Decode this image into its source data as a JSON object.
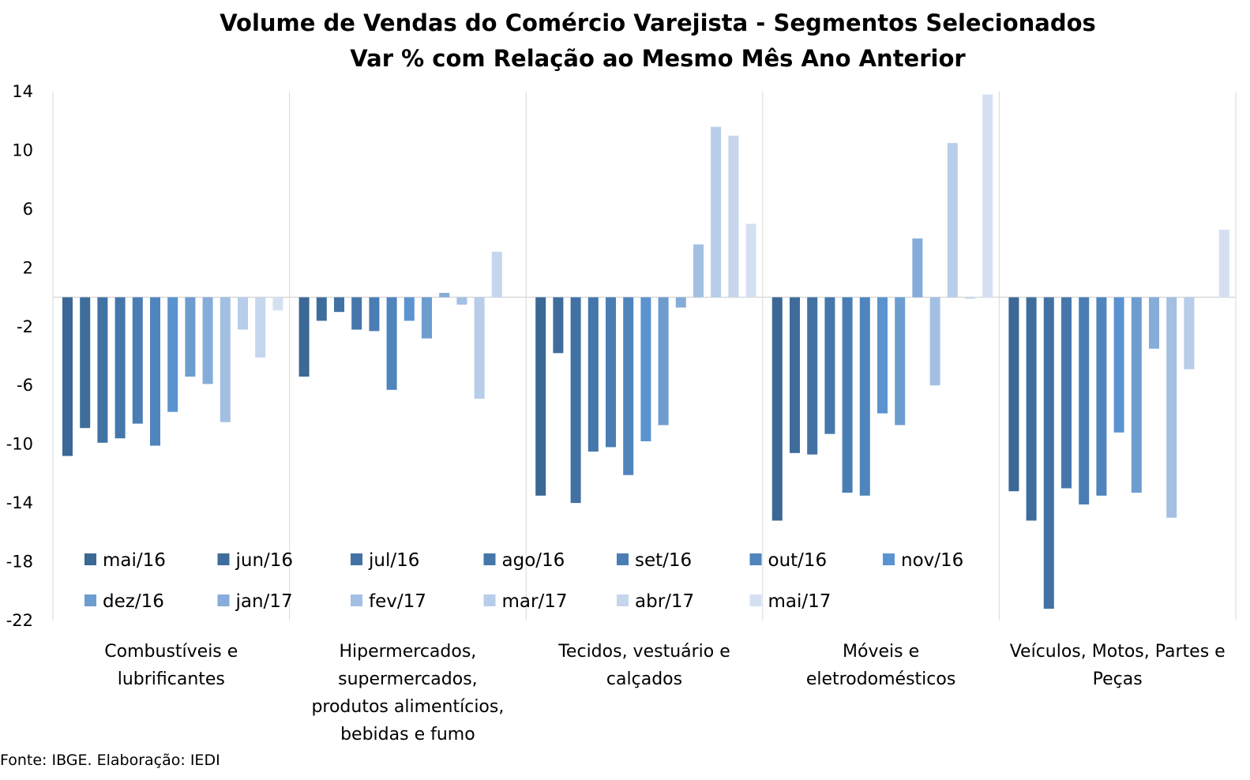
{
  "chart_data": {
    "type": "bar",
    "title": "Volume de Vendas do Comércio Varejista - Segmentos Selecionados",
    "subtitle": "Var % com Relação ao Mesmo Mês Ano Anterior",
    "ylim": [
      -22,
      14
    ],
    "yticks": [
      14,
      10,
      6,
      2,
      -2,
      -6,
      -10,
      -14,
      -18,
      -22
    ],
    "grid": false,
    "legend_position": "bottom-left (inside plot)",
    "categories": [
      [
        "Combustíveis e",
        "lubrificantes"
      ],
      [
        "Hipermercados,",
        "supermercados,",
        "produtos alimentícios,",
        "bebidas e fumo"
      ],
      [
        "Tecidos, vestuário e",
        "calçados"
      ],
      [
        "Móveis e",
        "eletrodomésticos"
      ],
      [
        "Veículos, Motos, Partes e",
        "Peças"
      ]
    ],
    "series": [
      {
        "name": "mai/16",
        "color": "#3b6895",
        "values": [
          -10.8,
          -5.4,
          -13.5,
          -15.2,
          -13.2
        ]
      },
      {
        "name": "jun/16",
        "color": "#3e6d9c",
        "values": [
          -8.9,
          -1.6,
          -3.8,
          -10.6,
          -15.2
        ]
      },
      {
        "name": "jul/16",
        "color": "#4272a4",
        "values": [
          -9.9,
          -1.0,
          -14.0,
          -10.7,
          -21.2
        ]
      },
      {
        "name": "ago/16",
        "color": "#4577ab",
        "values": [
          -9.6,
          -2.2,
          -10.5,
          -9.3,
          -13.0
        ]
      },
      {
        "name": "set/16",
        "color": "#4a7db4",
        "values": [
          -8.6,
          -2.3,
          -10.2,
          -13.3,
          -14.1
        ]
      },
      {
        "name": "out/16",
        "color": "#4f84bd",
        "values": [
          -10.1,
          -6.3,
          -12.1,
          -13.5,
          -13.5
        ]
      },
      {
        "name": "nov/16",
        "color": "#5b93d0",
        "values": [
          -7.8,
          -1.6,
          -9.8,
          -7.9,
          -9.2
        ]
      },
      {
        "name": "dez/16",
        "color": "#6d9ccf",
        "values": [
          -5.4,
          -2.8,
          -8.7,
          -8.7,
          -13.3
        ]
      },
      {
        "name": "jan/17",
        "color": "#86acd9",
        "values": [
          -5.9,
          0.3,
          -0.7,
          4.0,
          -3.5
        ]
      },
      {
        "name": "fev/17",
        "color": "#a3c0e3",
        "values": [
          -8.5,
          -0.5,
          3.6,
          -6.0,
          -15.0
        ]
      },
      {
        "name": "mar/17",
        "color": "#b7cde9",
        "values": [
          -2.2,
          -6.9,
          11.6,
          10.5,
          -4.9
        ]
      },
      {
        "name": "abr/17",
        "color": "#c5d6ed",
        "values": [
          -4.1,
          3.1,
          11.0,
          -0.1,
          0.0
        ]
      },
      {
        "name": "mai/17",
        "color": "#d4e0f2",
        "values": [
          -0.9,
          0.0,
          5.0,
          13.8,
          4.6
        ]
      }
    ]
  },
  "source": "Fonte: IBGE. Elaboração: IEDI"
}
